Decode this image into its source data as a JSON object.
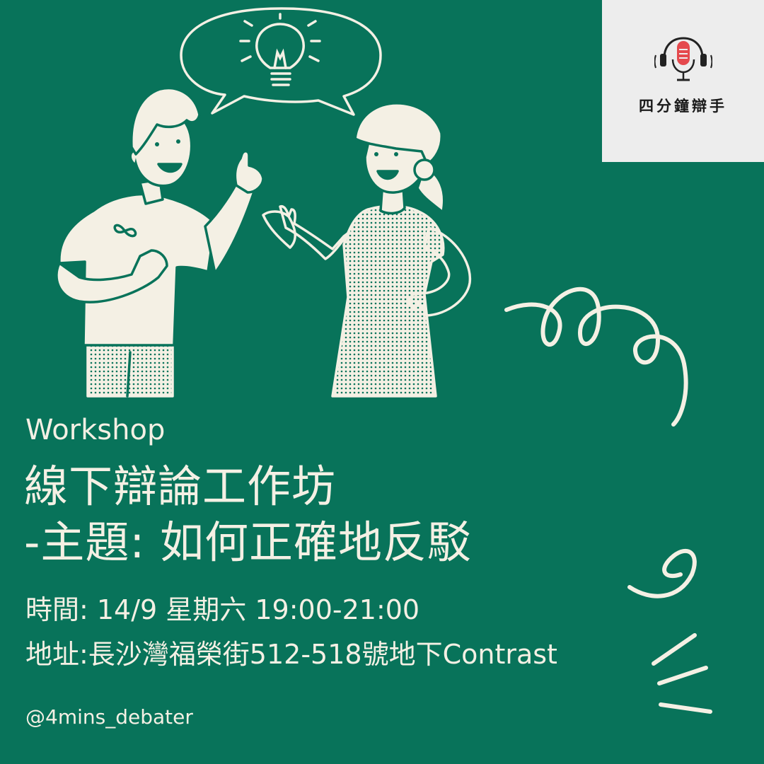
{
  "logo": {
    "name": "四分鐘辯手",
    "icon": "microphone-headphones-icon",
    "colors": {
      "mic": "#e5494d",
      "frame": "#222222",
      "background": "#ededed"
    }
  },
  "illustration": {
    "icons": [
      "speech-bubble-icon",
      "lightbulb-icon",
      "infinity-icon",
      "squiggle-line",
      "swoosh-line",
      "stroke-marks"
    ]
  },
  "event": {
    "eyebrow": "Workshop",
    "title_line1": "線下辯論工作坊",
    "title_line2": "-主題: 如何正確地反駁",
    "time": "時間: 14/9 星期六 19:00-21:00",
    "address": "地址:長沙灣福榮街512-518號地下Contrast"
  },
  "handle": "@4mins_debater",
  "colors": {
    "background": "#08735a",
    "foreground": "#f4f0e4"
  }
}
